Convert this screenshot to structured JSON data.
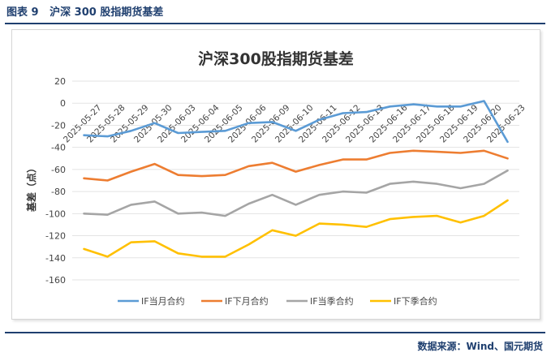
{
  "header": {
    "label": "图表 9",
    "title": "沪深 300 股指期货基差"
  },
  "source": "数据来源：Wind、国元期货",
  "chart_data": {
    "type": "line",
    "title": "沪深300股指期货基差",
    "ylabel": "基差（点）",
    "xlabel": "",
    "ylim": [
      -160,
      20
    ],
    "yticks": [
      20,
      0,
      -20,
      -40,
      -60,
      -80,
      -100,
      -120,
      -140,
      -160
    ],
    "categories": [
      "2025-05-27",
      "2025-05-28",
      "2025-05-29",
      "2025-05-30",
      "2025-06-03",
      "2025-06-04",
      "2025-06-05",
      "2025-06-06",
      "2025-06-09",
      "2025-06-10",
      "2025-06-11",
      "2025-06-12",
      "2025-06-13",
      "2025-06-16",
      "2025-06-17",
      "2025-06-18",
      "2025-06-19",
      "2025-06-20",
      "2025-06-23"
    ],
    "series": [
      {
        "name": "IF当月合约",
        "color": "#5b9bd5",
        "values": [
          -29,
          -30,
          -25,
          -18,
          -27,
          -26,
          -25,
          -18,
          -17,
          -25,
          -15,
          -9,
          -8,
          -3,
          -1,
          -3,
          -3,
          2,
          -35
        ]
      },
      {
        "name": "IF下月合约",
        "color": "#ed7d31",
        "values": [
          -68,
          -70,
          -62,
          -55,
          -65,
          -66,
          -65,
          -57,
          -54,
          -62,
          -56,
          -51,
          -51,
          -45,
          -43,
          -44,
          -45,
          -43,
          -50
        ]
      },
      {
        "name": "IF当季合约",
        "color": "#a5a5a5",
        "values": [
          -100,
          -101,
          -92,
          -89,
          -100,
          -99,
          -102,
          -91,
          -83,
          -92,
          -83,
          -80,
          -81,
          -73,
          -71,
          -73,
          -77,
          -73,
          -61
        ]
      },
      {
        "name": "IF下季合约",
        "color": "#ffc000",
        "values": [
          -132,
          -139,
          -126,
          -125,
          -136,
          -139,
          -139,
          -128,
          -115,
          -120,
          -109,
          -110,
          -112,
          -105,
          -103,
          -102,
          -108,
          -102,
          -88
        ]
      }
    ],
    "legend": "bottom"
  }
}
